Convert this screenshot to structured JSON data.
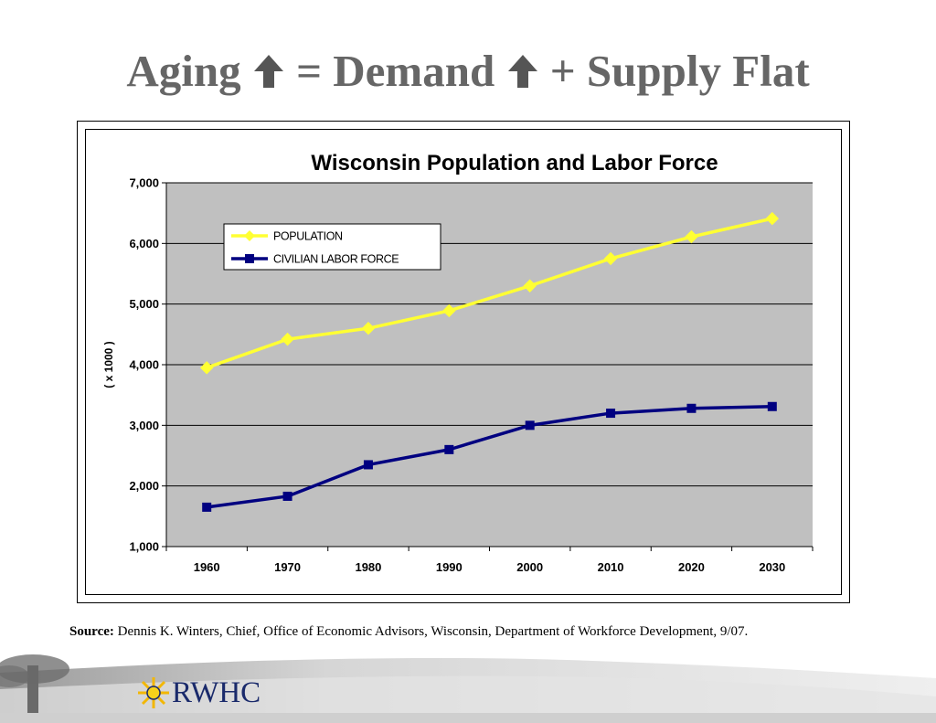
{
  "slide": {
    "title_part1": "Aging",
    "title_part2": "= Demand",
    "title_part3": "+ Supply Flat",
    "source_label": "Source:",
    "source_text": "Dennis K. Winters, Chief, Office of Economic Advisors, Wisconsin, Department of Workforce Development, 9/07.",
    "logo_text": "RWHC",
    "title_color": "#666666",
    "logo_color": "#1a2a6b",
    "logo_icon": "sun-icon"
  },
  "chart_data": {
    "type": "line",
    "title": "Wisconsin Population and Labor Force",
    "xlabel": "",
    "ylabel": "( x 1000 )",
    "categories": [
      "1960",
      "1970",
      "1980",
      "1990",
      "2000",
      "2010",
      "2020",
      "2030"
    ],
    "ylim": [
      1000,
      7000
    ],
    "yticks": [
      1000,
      2000,
      3000,
      4000,
      5000,
      6000,
      7000
    ],
    "ytick_labels": [
      "1,000",
      "2,000",
      "3,000",
      "4,000",
      "5,000",
      "6,000",
      "7,000"
    ],
    "grid": true,
    "legend_position": "top-left",
    "plot_background": "#c0c0c0",
    "series": [
      {
        "name": "POPULATION",
        "color": "#ffff33",
        "marker": "diamond",
        "values": [
          3950,
          4420,
          4600,
          4890,
          5300,
          5750,
          6110,
          6410
        ]
      },
      {
        "name": "CIVILIAN LABOR FORCE",
        "color": "#000080",
        "marker": "square",
        "values": [
          1650,
          1830,
          2350,
          2600,
          3000,
          3200,
          3280,
          3310
        ]
      }
    ]
  }
}
